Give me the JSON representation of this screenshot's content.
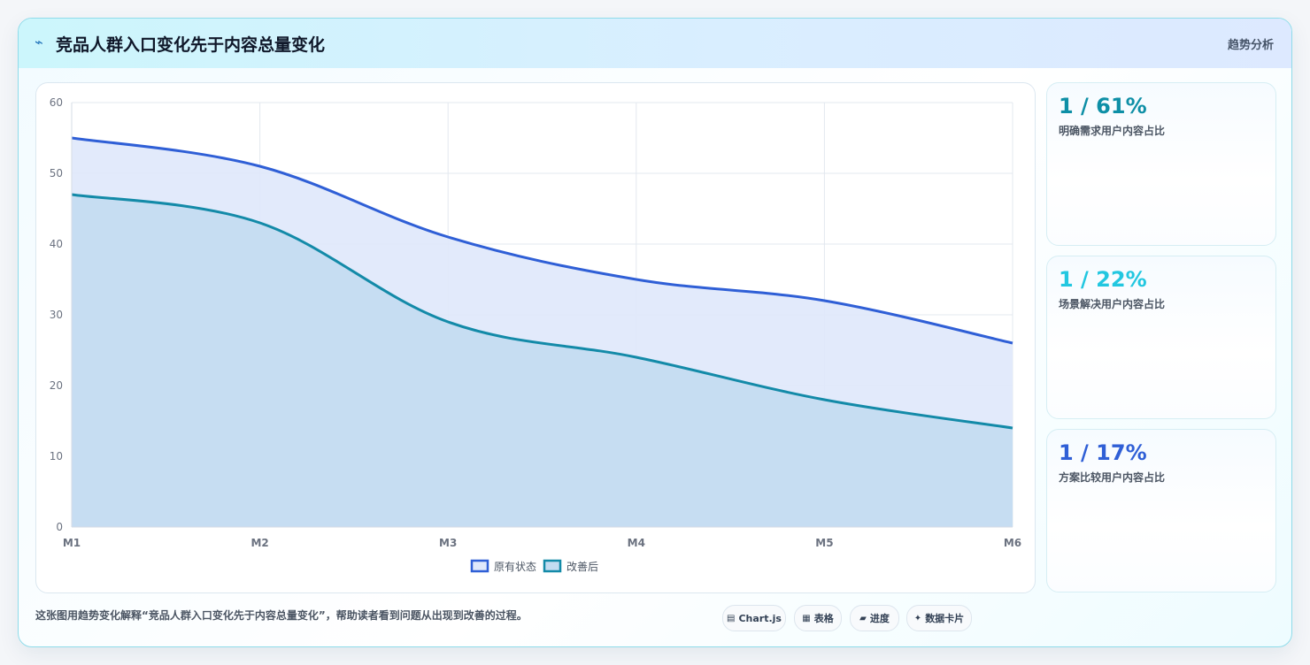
{
  "header": {
    "icon": "trend-icon",
    "title": "竞品人群入口变化先于内容总量变化",
    "tag": "趋势分析"
  },
  "chart_data": {
    "type": "area",
    "categories": [
      "M1",
      "M2",
      "M3",
      "M4",
      "M5",
      "M6"
    ],
    "series": [
      {
        "name": "原有状态",
        "values": [
          55,
          51,
          41,
          35,
          32,
          26
        ],
        "color": "#2f5fd6",
        "fill": "#dfe8fb"
      },
      {
        "name": "改善后",
        "values": [
          47,
          43,
          29,
          24,
          18,
          14
        ],
        "color": "#138aa8",
        "fill": "#c3dcf1"
      }
    ],
    "ylim": [
      0,
      60
    ],
    "yticks": [
      0,
      10,
      20,
      30,
      40,
      50,
      60
    ],
    "grid": true,
    "legend": "bottom-center",
    "title": "",
    "xlabel": "",
    "ylabel": ""
  },
  "kpis": [
    {
      "value": "1 / 61%",
      "label": "明确需求用户内容占比",
      "color": "#0e8fa6"
    },
    {
      "value": "1 / 22%",
      "label": "场景解决用户内容占比",
      "color": "#22c7e0"
    },
    {
      "value": "1 / 17%",
      "label": "方案比较用户内容占比",
      "color": "#2f5fd6"
    }
  ],
  "footer": {
    "text": "这张图用趋势变化解释“竞品人群入口变化先于内容总量变化”，帮助读者看到问题从出现到改善的过程。",
    "pills": [
      {
        "icon": "chart-icon",
        "glyph": "▤",
        "label": "Chart.js"
      },
      {
        "icon": "table-icon",
        "glyph": "▦",
        "label": "表格"
      },
      {
        "icon": "progress-icon",
        "glyph": "▰",
        "label": "进度"
      },
      {
        "icon": "card-icon",
        "glyph": "✦",
        "label": "数据卡片"
      }
    ]
  }
}
